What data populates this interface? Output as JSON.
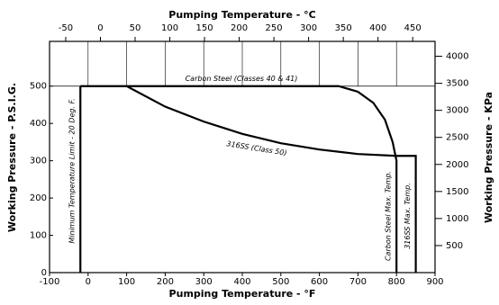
{
  "chart_data": {
    "type": "line",
    "x_title": "Pumping Temperature - °F",
    "x2_title": "Pumping Temperature - °C",
    "y_title": "Working Pressure - P.S.I.G.",
    "y2_title": "Working Pressure - KPa",
    "xlim": [
      -100,
      900
    ],
    "xticks": [
      -100,
      0,
      100,
      200,
      300,
      400,
      500,
      600,
      700,
      800,
      900
    ],
    "x2lim": [
      -73.3,
      482.2
    ],
    "x2ticks": [
      -50,
      0,
      50,
      100,
      150,
      200,
      250,
      300,
      350,
      400,
      450
    ],
    "ylim": [
      0,
      620
    ],
    "yticks": [
      0,
      100,
      200,
      300,
      400,
      500
    ],
    "y2lim": [
      0,
      4275
    ],
    "y2ticks": [
      500,
      1000,
      1500,
      2000,
      2500,
      3000,
      3500,
      4000
    ],
    "grid": true,
    "series": [
      {
        "name": "Carbon Steel (Classes 40 & 41)",
        "color": "#000000",
        "x": [
          -20,
          650,
          700,
          740,
          770,
          790,
          800,
          800
        ],
        "values": [
          500,
          500,
          485,
          455,
          410,
          350,
          300,
          0
        ]
      },
      {
        "name": "316SS (Class 50)",
        "color": "#000000",
        "x": [
          100,
          200,
          300,
          400,
          500,
          600,
          700,
          800,
          850,
          850
        ],
        "values": [
          500,
          445,
          405,
          372,
          347,
          330,
          318,
          313,
          313,
          0
        ]
      },
      {
        "name": "Minimum Temperature Limit - 20 Deg. F.",
        "color": "#000000",
        "x": [
          -20,
          -20
        ],
        "values": [
          0,
          500
        ]
      }
    ],
    "annotations": [
      "Carbon Steel Max. Temp.",
      "316SS Max. Temp."
    ]
  }
}
